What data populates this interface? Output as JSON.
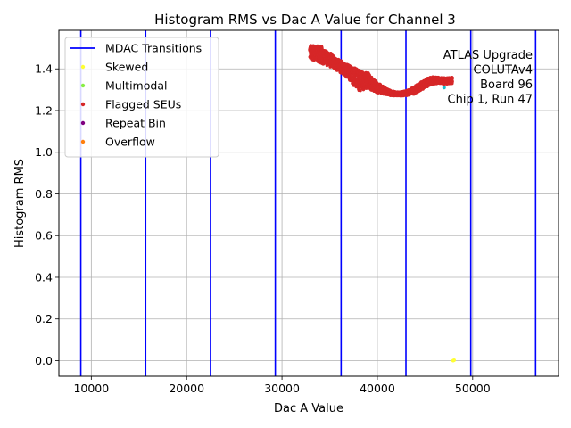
{
  "chart_data": {
    "type": "scatter",
    "title": "Histogram RMS vs Dac A Value for Channel 3",
    "xlabel": "Dac A Value",
    "ylabel": "Histogram RMS",
    "xlim": [
      6600,
      59000
    ],
    "ylim": [
      -0.075,
      1.585
    ],
    "xticks": [
      10000,
      20000,
      30000,
      40000,
      50000
    ],
    "yticks": [
      0.0,
      0.2,
      0.4,
      0.6,
      0.8,
      1.0,
      1.2,
      1.4
    ],
    "ytick_labels": [
      "0.0",
      "0.2",
      "0.4",
      "0.6",
      "0.8",
      "1.0",
      "1.2",
      "1.4"
    ],
    "grid": true,
    "legend_position": "top-left",
    "annotation": [
      "ATLAS Upgrade",
      "COLUTAv4",
      "Board 96",
      "Chip 1, Run 47"
    ],
    "vlines": {
      "name": "MDAC Transitions",
      "color": "#0000ff",
      "x": [
        8900,
        15700,
        22500,
        29300,
        36200,
        43000,
        49800,
        56600
      ]
    },
    "series": [
      {
        "name": "MDAC Transitions",
        "kind": "line",
        "color": "#0000ff"
      },
      {
        "name": "Skewed",
        "kind": "marker",
        "color": "#ffff33",
        "points": [
          [
            47950,
            0.0
          ],
          [
            48050,
            0.002
          ]
        ]
      },
      {
        "name": "Multimodal",
        "kind": "marker",
        "color": "#88ee44",
        "points": []
      },
      {
        "name": "Flagged SEUs",
        "kind": "band",
        "color": "#d62728",
        "curve": [
          [
            32900,
            1.48,
            0.035
          ],
          [
            33500,
            1.475,
            0.035
          ],
          [
            34000,
            1.47,
            0.045
          ],
          [
            34500,
            1.455,
            0.035
          ],
          [
            35000,
            1.445,
            0.035
          ],
          [
            35500,
            1.43,
            0.03
          ],
          [
            36000,
            1.415,
            0.03
          ],
          [
            36500,
            1.4,
            0.03
          ],
          [
            37000,
            1.385,
            0.035
          ],
          [
            37500,
            1.365,
            0.045
          ],
          [
            38000,
            1.345,
            0.05
          ],
          [
            38500,
            1.34,
            0.045
          ],
          [
            39000,
            1.345,
            0.04
          ],
          [
            39500,
            1.325,
            0.03
          ],
          [
            40000,
            1.31,
            0.025
          ],
          [
            40500,
            1.3,
            0.02
          ],
          [
            41000,
            1.29,
            0.015
          ],
          [
            41500,
            1.282,
            0.012
          ],
          [
            42000,
            1.28,
            0.01
          ],
          [
            42500,
            1.28,
            0.01
          ],
          [
            43000,
            1.283,
            0.012
          ],
          [
            43500,
            1.29,
            0.015
          ],
          [
            44000,
            1.3,
            0.02
          ],
          [
            44500,
            1.315,
            0.02
          ],
          [
            45000,
            1.328,
            0.02
          ],
          [
            45500,
            1.34,
            0.02
          ],
          [
            46000,
            1.345,
            0.018
          ],
          [
            46500,
            1.345,
            0.015
          ],
          [
            47000,
            1.342,
            0.015
          ],
          [
            47500,
            1.343,
            0.015
          ],
          [
            47900,
            1.345,
            0.015
          ]
        ]
      },
      {
        "name": "Repeat Bin",
        "kind": "marker",
        "color": "#800080",
        "points": []
      },
      {
        "name": "Overflow",
        "kind": "marker",
        "color": "#ff7f0e",
        "points": []
      },
      {
        "name": "",
        "kind": "marker",
        "color": "#17becf",
        "in_legend": false,
        "points": [
          [
            47000,
            1.31
          ]
        ]
      }
    ]
  }
}
